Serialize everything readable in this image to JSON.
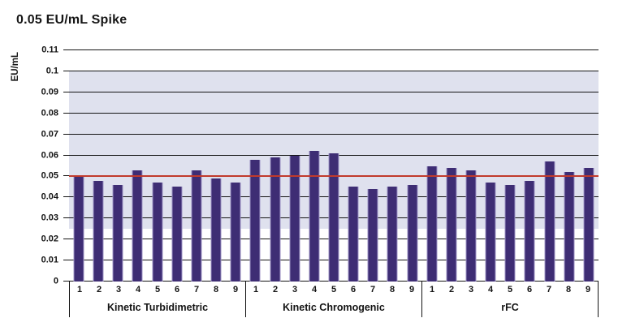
{
  "title": "0.05 EU/mL Spike",
  "colors": {
    "bar_fill": "#3e2d74",
    "bar_edge": "#9c92c5",
    "shaded_band": "#dfe1ee",
    "reference_line": "#c13a2c",
    "gridline": "#141414",
    "text": "#161616"
  },
  "chart_data": {
    "type": "bar",
    "title": "0.05 EU/mL Spike",
    "xlabel": "",
    "ylabel": "EU/mL",
    "ylim": [
      0,
      0.11
    ],
    "grid": true,
    "legend": "none",
    "categories": [
      "1",
      "2",
      "3",
      "4",
      "5",
      "6",
      "7",
      "8",
      "9"
    ],
    "groups": [
      {
        "label": "Kinetic Turbidimetric",
        "values": [
          0.05,
          0.048,
          0.046,
          0.053,
          0.047,
          0.045,
          0.053,
          0.049,
          0.047
        ]
      },
      {
        "label": "Kinetic Chromogenic",
        "values": [
          0.058,
          0.059,
          0.06,
          0.062,
          0.061,
          0.045,
          0.044,
          0.045,
          0.046
        ]
      },
      {
        "label": "rFC",
        "values": [
          0.055,
          0.054,
          0.053,
          0.047,
          0.046,
          0.048,
          0.057,
          0.052,
          0.054
        ]
      }
    ],
    "reference_line": {
      "value": 0.05,
      "label": "0.05 EU/mL spike level"
    },
    "shaded_band": {
      "from": 0.025,
      "to": 0.1
    },
    "yticks": [
      {
        "label": "0",
        "value": 0
      },
      {
        "label": "0.01",
        "value": 0.01
      },
      {
        "label": "0.02",
        "value": 0.02
      },
      {
        "label": "0.03",
        "value": 0.03
      },
      {
        "label": "0.04",
        "value": 0.04
      },
      {
        "label": "0.05",
        "value": 0.05
      },
      {
        "label": "0.06",
        "value": 0.06
      },
      {
        "label": "0.07",
        "value": 0.07
      },
      {
        "label": "0.08",
        "value": 0.08
      },
      {
        "label": "0.09",
        "value": 0.09
      },
      {
        "label": "0.1",
        "value": 0.1
      },
      {
        "label": "0.11",
        "value": 0.11
      }
    ]
  }
}
